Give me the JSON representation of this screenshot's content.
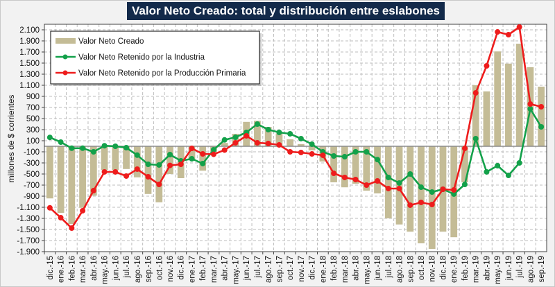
{
  "chart_data": {
    "type": "bar",
    "title": "Valor Neto Creado: total y distribución entre eslabones",
    "xlabel": "",
    "ylabel": "millones de $ corrientes",
    "ylim": [
      -1900,
      2100
    ],
    "yticks": [
      2100,
      1900,
      1700,
      1500,
      1300,
      1100,
      900,
      700,
      500,
      300,
      100,
      -100,
      -300,
      -500,
      -700,
      -900,
      -1100,
      -1300,
      -1500,
      -1700,
      -1900
    ],
    "ytick_labels": [
      "2.100",
      "1.900",
      "1.700",
      "1.500",
      "1.300",
      "1.100",
      "900",
      "700",
      "500",
      "300",
      "100",
      "-100",
      "-300",
      "-500",
      "-700",
      "-900",
      "-1.100",
      "-1.300",
      "-1.500",
      "-1.700",
      "-1.900"
    ],
    "grid": true,
    "legend_position": "top-left",
    "categories": [
      "dic.-15",
      "ene.-16",
      "feb.-16",
      "mar.-16",
      "abr.-16",
      "may.-16",
      "jun.-16",
      "jul.-16",
      "ago.-16",
      "sep.-16",
      "oct.-16",
      "nov.-16",
      "dic.-16",
      "ene.-17",
      "feb.-17",
      "mar.-17",
      "abr.-17",
      "may.-17",
      "jun.-17",
      "jul.-17",
      "ago.-17",
      "sep.-17",
      "oct.-17",
      "nov.-17",
      "dic.-17",
      "ene.-18",
      "feb.-18",
      "mar.-18",
      "abr.-18",
      "may.-18",
      "jun.-18",
      "jul.-18",
      "ago.-18",
      "sep.-18",
      "oct.-18",
      "nov.-18",
      "dic.-18",
      "ene.-19",
      "feb.-19",
      "mar.-19",
      "abr.-19",
      "may.-19",
      "jun.-19",
      "jul.-19",
      "ago.-19",
      "sep.-19"
    ],
    "series": [
      {
        "name": "Valor Neto Creado",
        "kind": "bar",
        "color": "#c4bc96",
        "values": [
          -940,
          -1200,
          -1400,
          -1110,
          -890,
          -430,
          -430,
          -410,
          -560,
          -860,
          -1010,
          -500,
          -575,
          -250,
          -440,
          -100,
          60,
          225,
          440,
          460,
          350,
          230,
          125,
          40,
          -75,
          -275,
          -650,
          -740,
          -675,
          -800,
          -850,
          -1300,
          -1410,
          -1540,
          -1750,
          -1850,
          -1540,
          -1640,
          -650,
          1100,
          990,
          1710,
          1490,
          1850,
          1425,
          1075
        ]
      },
      {
        "name": "Valor Neto Retenido por la Industria",
        "kind": "line",
        "color": "#13a14a",
        "values": [
          160,
          75,
          -35,
          -35,
          -100,
          10,
          0,
          -25,
          -160,
          -325,
          -337,
          -150,
          -262,
          -225,
          -312,
          -62,
          115,
          162,
          250,
          400,
          300,
          250,
          225,
          138,
          38,
          -100,
          -175,
          -188,
          -100,
          -100,
          -240,
          -562,
          -662,
          -500,
          -738,
          -825,
          -775,
          -862,
          -688,
          138,
          -462,
          -350,
          -525,
          -300,
          675,
          350
        ]
      },
      {
        "name": "Valor Neto Retenido por la Producción Primaria",
        "kind": "line",
        "color": "#ee1c1c",
        "values": [
          -1110,
          -1288,
          -1475,
          -1162,
          -800,
          -462,
          -462,
          -537,
          -412,
          -550,
          -688,
          -345,
          -325,
          -38,
          -138,
          -145,
          -68,
          62,
          188,
          62,
          50,
          25,
          -100,
          -112,
          -138,
          -162,
          -488,
          -562,
          -600,
          -700,
          -625,
          -762,
          -762,
          -1062,
          -1012,
          -1050,
          -775,
          -788,
          -38,
          962,
          1450,
          2062,
          2012,
          2150,
          762,
          712
        ]
      }
    ]
  }
}
